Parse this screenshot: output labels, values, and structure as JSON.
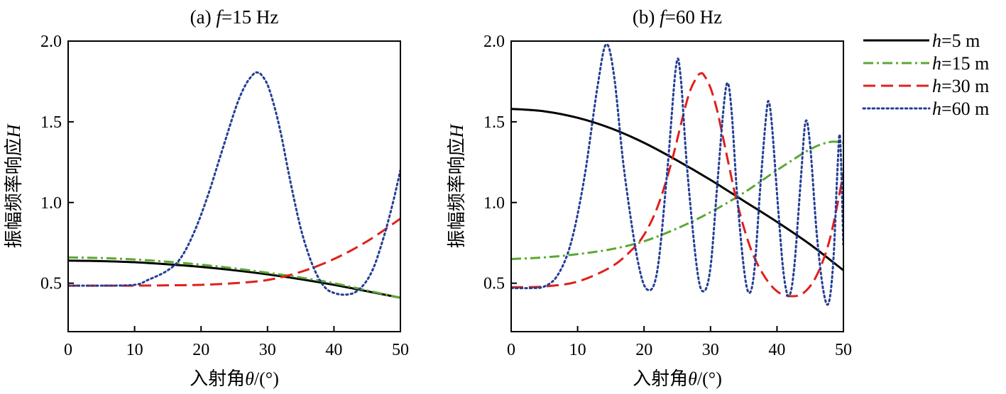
{
  "chart_data": [
    {
      "type": "line",
      "title_label": "(a)",
      "title_var": "f",
      "title_value": "=15 Hz",
      "xlabel_prefix": "入射角",
      "xlabel_var": "θ",
      "xlabel_suffix": "/(°)",
      "ylabel_prefix": "振幅频率响应",
      "ylabel_var": "H",
      "xlim": [
        0,
        50
      ],
      "ylim": [
        0.2,
        2.0
      ],
      "xticks": [
        0,
        10,
        20,
        30,
        40,
        50
      ],
      "yticks": [
        0.5,
        1.0,
        1.5,
        2.0
      ],
      "xtick_labels": [
        "0",
        "10",
        "20",
        "30",
        "40",
        "50"
      ],
      "ytick_labels": [
        "0.5",
        "1.0",
        "1.5",
        "2.0"
      ],
      "grid": false,
      "series": [
        {
          "name": "h=5 m",
          "color": "#000000",
          "style": "solid",
          "x": [
            0,
            5,
            10,
            15,
            20,
            25,
            30,
            35,
            40,
            45,
            50
          ],
          "y": [
            0.64,
            0.637,
            0.63,
            0.617,
            0.601,
            0.58,
            0.555,
            0.525,
            0.49,
            0.45,
            0.41
          ]
        },
        {
          "name": "h=15 m",
          "color": "#5aa832",
          "style": "dashdot",
          "x": [
            0,
            5,
            10,
            15,
            20,
            25,
            30,
            35,
            40,
            45,
            50
          ],
          "y": [
            0.66,
            0.656,
            0.647,
            0.633,
            0.615,
            0.592,
            0.565,
            0.535,
            0.5,
            0.455,
            0.41
          ]
        },
        {
          "name": "h=30 m",
          "color": "#e0201b",
          "style": "dashed",
          "x": [
            0,
            5,
            10,
            15,
            20,
            25,
            30,
            35,
            40,
            45,
            50
          ],
          "y": [
            0.485,
            0.485,
            0.485,
            0.487,
            0.49,
            0.5,
            0.52,
            0.57,
            0.65,
            0.76,
            0.9
          ]
        },
        {
          "name": "h=60 m",
          "color": "#233e94",
          "style": "dotted",
          "x": [
            0,
            5,
            10,
            12,
            15,
            17,
            19,
            21,
            23,
            25,
            26,
            27,
            28,
            28.5,
            29,
            30,
            31,
            32,
            33,
            34,
            35,
            36,
            37,
            38,
            39,
            40,
            41,
            42,
            43,
            44,
            45,
            46,
            47,
            48,
            49,
            50
          ],
          "y": [
            0.485,
            0.485,
            0.49,
            0.52,
            0.58,
            0.66,
            0.82,
            1.04,
            1.3,
            1.56,
            1.67,
            1.75,
            1.8,
            1.805,
            1.795,
            1.73,
            1.6,
            1.43,
            1.22,
            1.02,
            0.84,
            0.7,
            0.59,
            0.51,
            0.46,
            0.44,
            0.43,
            0.43,
            0.44,
            0.47,
            0.52,
            0.6,
            0.72,
            0.86,
            1.02,
            1.2
          ]
        }
      ]
    },
    {
      "type": "line",
      "title_label": "(b)",
      "title_var": "f",
      "title_value": "=60 Hz",
      "xlabel_prefix": "入射角",
      "xlabel_var": "θ",
      "xlabel_suffix": "/(°)",
      "ylabel_prefix": "振幅频率响应",
      "ylabel_var": "H",
      "xlim": [
        0,
        50
      ],
      "ylim": [
        0.2,
        2.0
      ],
      "xticks": [
        0,
        10,
        20,
        30,
        40,
        50
      ],
      "yticks": [
        0.5,
        1.0,
        1.5,
        2.0
      ],
      "xtick_labels": [
        "0",
        "10",
        "20",
        "30",
        "40",
        "50"
      ],
      "ytick_labels": [
        "0.5",
        "1.0",
        "1.5",
        "2.0"
      ],
      "grid": false,
      "series": [
        {
          "name": "h=5 m",
          "color": "#000000",
          "style": "solid",
          "x": [
            0,
            5,
            10,
            15,
            20,
            25,
            30,
            35,
            40,
            45,
            50
          ],
          "y": [
            1.58,
            1.565,
            1.525,
            1.46,
            1.37,
            1.26,
            1.14,
            1.01,
            0.88,
            0.74,
            0.58
          ]
        },
        {
          "name": "h=15 m",
          "color": "#5aa832",
          "style": "dashdot",
          "x": [
            0,
            5,
            10,
            15,
            20,
            25,
            30,
            35,
            40,
            45,
            48,
            50
          ],
          "y": [
            0.65,
            0.66,
            0.68,
            0.71,
            0.76,
            0.84,
            0.94,
            1.06,
            1.2,
            1.33,
            1.375,
            1.37
          ]
        },
        {
          "name": "h=30 m",
          "color": "#e0201b",
          "style": "dashed",
          "x": [
            0,
            5,
            10,
            15,
            18,
            20,
            22,
            24,
            26,
            27,
            28,
            28.5,
            29,
            30,
            31,
            32,
            34,
            36,
            38,
            40,
            42,
            44,
            46,
            48,
            50
          ],
          "y": [
            0.475,
            0.48,
            0.51,
            0.6,
            0.7,
            0.8,
            0.97,
            1.23,
            1.56,
            1.7,
            1.78,
            1.8,
            1.79,
            1.71,
            1.57,
            1.38,
            1.0,
            0.72,
            0.55,
            0.45,
            0.42,
            0.44,
            0.55,
            0.78,
            1.18
          ]
        },
        {
          "name": "h=60 m",
          "color": "#233e94",
          "style": "dotted",
          "x": [
            0,
            3,
            5,
            7,
            9,
            11,
            13,
            14.3,
            15.5,
            17,
            19,
            20.5,
            22,
            23.5,
            24.8,
            25.5,
            26.5,
            28,
            29,
            30,
            31,
            32,
            32.6,
            33.2,
            34,
            35,
            35.8,
            36.6,
            37.5,
            38.4,
            38.8,
            39.3,
            40.2,
            41,
            41.8,
            42.6,
            43.6,
            44.3,
            45,
            46,
            47,
            47.8,
            48.5,
            49.1,
            49.5,
            50
          ],
          "y": [
            0.47,
            0.47,
            0.48,
            0.55,
            0.75,
            1.15,
            1.72,
            1.98,
            1.78,
            1.2,
            0.65,
            0.46,
            0.58,
            1.2,
            1.84,
            1.78,
            1.2,
            0.58,
            0.45,
            0.6,
            1.1,
            1.6,
            1.74,
            1.55,
            1.05,
            0.6,
            0.44,
            0.58,
            1.1,
            1.55,
            1.62,
            1.45,
            0.95,
            0.56,
            0.42,
            0.6,
            1.15,
            1.5,
            1.35,
            0.8,
            0.45,
            0.38,
            0.65,
            1.2,
            1.4,
            0.72
          ]
        }
      ]
    }
  ],
  "legend": {
    "placement": "right",
    "entries": [
      {
        "var": "h",
        "value": "=5 m",
        "color": "#000000",
        "style": "solid"
      },
      {
        "var": "h",
        "value": "=15 m",
        "color": "#5aa832",
        "style": "dashdot"
      },
      {
        "var": "h",
        "value": "=30 m",
        "color": "#e0201b",
        "style": "dashed"
      },
      {
        "var": "h",
        "value": "=60 m",
        "color": "#233e94",
        "style": "dotted"
      }
    ]
  }
}
